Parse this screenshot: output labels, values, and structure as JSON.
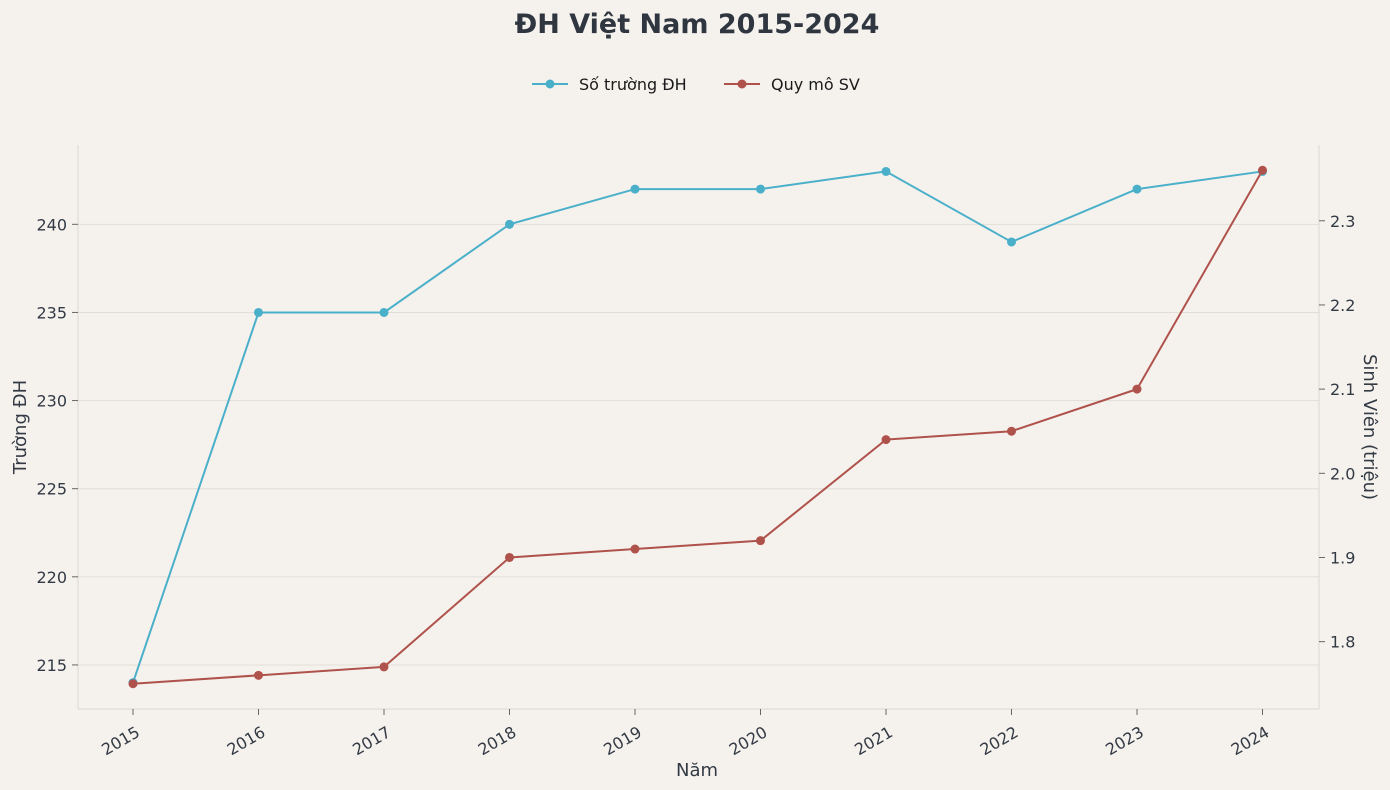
{
  "chart_data": {
    "type": "line",
    "title": "ĐH Việt Nam 2015-2024",
    "xlabel": "Năm",
    "ylabel_left": "Trường ĐH",
    "ylabel_right": "Sinh Viên (triệu)",
    "x": [
      2015,
      2016,
      2017,
      2018,
      2019,
      2020,
      2021,
      2022,
      2023,
      2024
    ],
    "x_tick_labels": [
      "2015",
      "2016",
      "2017",
      "2018",
      "2019",
      "2020",
      "2021",
      "2022",
      "2023",
      "2024"
    ],
    "ylim_left": [
      212.5,
      244.5
    ],
    "yticks_left": [
      215,
      220,
      225,
      230,
      235,
      240
    ],
    "ylim_right": [
      1.72,
      2.39
    ],
    "yticks_right": [
      1.8,
      1.9,
      2.0,
      2.1,
      2.2,
      2.3
    ],
    "yticks_right_labels": [
      "1.8",
      "1.9",
      "2.0",
      "2.1",
      "2.2",
      "2.3"
    ],
    "grid": true,
    "legend_position": "top-center",
    "series": [
      {
        "name": "Số trường ĐH",
        "axis": "left",
        "color": "#4ab0c9",
        "values": [
          214,
          235,
          235,
          240,
          242,
          242,
          243,
          239,
          242,
          243
        ]
      },
      {
        "name": "Quy mô SV",
        "axis": "right",
        "color": "#b0524c",
        "values": [
          1.75,
          1.76,
          1.77,
          1.9,
          1.91,
          1.92,
          2.04,
          2.05,
          2.1,
          2.36
        ]
      }
    ]
  }
}
